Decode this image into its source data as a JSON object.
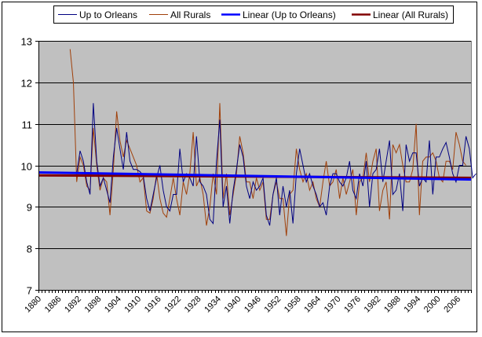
{
  "chart_data": {
    "type": "line",
    "title": "",
    "xlabel": "",
    "ylabel": "",
    "ylim": [
      7,
      13
    ],
    "yticks": [
      "7",
      "8",
      "9",
      "10",
      "11",
      "12",
      "13"
    ],
    "xlim": [
      1880,
      2010
    ],
    "xtick_labels": [
      "1880",
      "1886",
      "1892",
      "1898",
      "1904",
      "1910",
      "1916",
      "1922",
      "1928",
      "1934",
      "1940",
      "1946",
      "1952",
      "1958",
      "1964",
      "1970",
      "1976",
      "1982",
      "1988",
      "1994",
      "2000",
      "2006"
    ],
    "grid": true,
    "legend_position": "top",
    "legend": [
      "Up to Orleans",
      "All Rurals",
      "Linear (Up to Orleans)",
      "Linear (All Rurals)"
    ],
    "colors": {
      "up_to_orleans": "#000080",
      "all_rurals": "#A0400A",
      "linear_up_to_orleans": "#0000FF",
      "linear_all_rurals": "#800000",
      "plot_bg": "#C0C0C0"
    },
    "series": [
      {
        "name": "Up to Orleans",
        "x_start": 1891,
        "values": [
          9.8,
          10.35,
          10.1,
          9.6,
          9.3,
          11.5,
          10.1,
          9.5,
          9.7,
          9.4,
          9.1,
          10.2,
          10.9,
          10.4,
          9.9,
          10.8,
          10.1,
          9.9,
          9.9,
          9.85,
          9.75,
          9.2,
          8.9,
          9.3,
          9.7,
          10.0,
          9.4,
          9.0,
          8.9,
          9.3,
          9.3,
          10.4,
          9.6,
          9.8,
          9.7,
          9.5,
          10.7,
          9.6,
          9.5,
          9.3,
          8.7,
          8.6,
          10.1,
          11.1,
          9.0,
          9.5,
          8.6,
          9.4,
          9.9,
          10.5,
          10.2,
          9.5,
          9.2,
          9.6,
          9.4,
          9.5,
          9.7,
          8.8,
          8.55,
          9.3,
          9.7,
          8.8,
          9.5,
          9.0,
          9.4,
          8.6,
          9.8,
          10.4,
          10.0,
          9.6,
          9.8,
          9.5,
          9.3,
          9.0,
          9.1,
          8.8,
          9.5,
          9.8,
          9.8,
          9.6,
          9.5,
          9.7,
          10.1,
          9.4,
          9.2,
          9.8,
          9.5,
          10.1,
          9.0,
          9.8,
          9.9,
          10.4,
          9.6,
          10.1,
          10.6,
          9.3,
          9.4,
          9.8,
          8.9,
          10.5,
          10.1,
          10.3,
          10.3,
          9.5,
          9.7,
          9.6,
          10.6,
          9.3,
          10.2,
          10.2,
          10.4,
          10.55,
          10.2,
          9.8,
          9.6,
          10.0,
          10.0,
          10.7,
          10.4,
          9.7,
          9.8
        ]
      },
      {
        "name": "All Rurals",
        "x_start": 1889,
        "values": [
          12.8,
          12.0,
          9.6,
          10.2,
          10.0,
          9.5,
          9.4,
          10.9,
          10.0,
          9.4,
          9.7,
          9.6,
          8.8,
          9.9,
          11.3,
          10.6,
          10.2,
          10.6,
          10.4,
          10.2,
          10.0,
          9.6,
          9.7,
          8.9,
          8.85,
          9.2,
          9.8,
          9.2,
          8.85,
          8.75,
          9.2,
          9.7,
          9.2,
          8.8,
          9.6,
          9.3,
          9.8,
          10.8,
          9.5,
          9.7,
          9.3,
          8.55,
          9.0,
          9.8,
          9.3,
          11.5,
          9.2,
          9.8,
          8.8,
          9.3,
          9.8,
          10.7,
          10.3,
          9.6,
          9.6,
          9.2,
          9.7,
          9.4,
          9.6,
          8.7,
          8.7,
          9.3,
          9.6,
          9.2,
          9.2,
          8.3,
          9.3,
          9.4,
          10.4,
          9.9,
          9.6,
          9.8,
          9.4,
          9.6,
          9.2,
          9.0,
          9.6,
          10.1,
          9.5,
          9.6,
          9.9,
          9.2,
          9.7,
          9.3,
          9.6,
          9.9,
          8.8,
          9.6,
          9.7,
          10.3,
          9.6,
          10.1,
          10.4,
          8.9,
          9.4,
          9.6,
          8.7,
          10.5,
          10.3,
          10.5,
          10.0,
          9.6,
          9.6,
          9.9,
          11.0,
          8.8,
          10.1,
          10.2,
          10.2,
          10.3,
          10.1,
          9.7,
          9.6,
          10.1,
          10.1,
          9.9,
          10.8,
          10.5,
          10.1,
          10.0
        ]
      },
      {
        "name": "Linear (Up to Orleans)",
        "x": [
          1880,
          2010
        ],
        "values": [
          9.83,
          9.66
        ]
      },
      {
        "name": "Linear (All Rurals)",
        "x": [
          1880,
          2010
        ],
        "values": [
          9.76,
          9.7
        ]
      }
    ]
  }
}
